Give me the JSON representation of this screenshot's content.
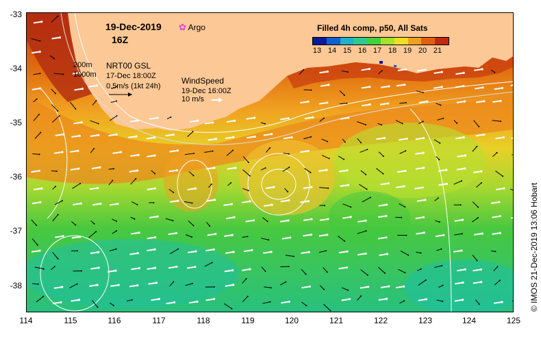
{
  "map": {
    "date": "19-Dec-2019",
    "hour": "16Z",
    "argo_label": "Argo",
    "argo_color": "#e040e0",
    "contour_legend": [
      "200m",
      "1000m"
    ],
    "current_title": "NRT00 GSL",
    "current_date": "17-Dec 18:00Z",
    "current_scale": "0.5m/s (1kt 24h)",
    "wind_title": "WindSpeed",
    "wind_date": "19-Dec 16:00Z",
    "wind_scale": "10 m/s",
    "colorbar_title": "Filled 4h comp, p50, All Sats",
    "colorbar_ticks": [
      "13",
      "14",
      "15",
      "16",
      "17",
      "18",
      "19",
      "20",
      "21"
    ],
    "colorbar_colors": [
      "#0a1a9a",
      "#1060d0",
      "#20b0c8",
      "#30c890",
      "#40d040",
      "#a8e030",
      "#f0e020",
      "#f0a020",
      "#e06010",
      "#c02a10"
    ],
    "latitudes": [
      "-33",
      "-34",
      "-35",
      "-36",
      "-37",
      "-38"
    ],
    "longitudes": [
      "114",
      "115",
      "116",
      "117",
      "118",
      "119",
      "120",
      "121",
      "122",
      "123",
      "124",
      "125"
    ],
    "copyright": "© IMOS 21-Dec-2019 13:06 Hobart",
    "land_color": "#fcc896"
  }
}
